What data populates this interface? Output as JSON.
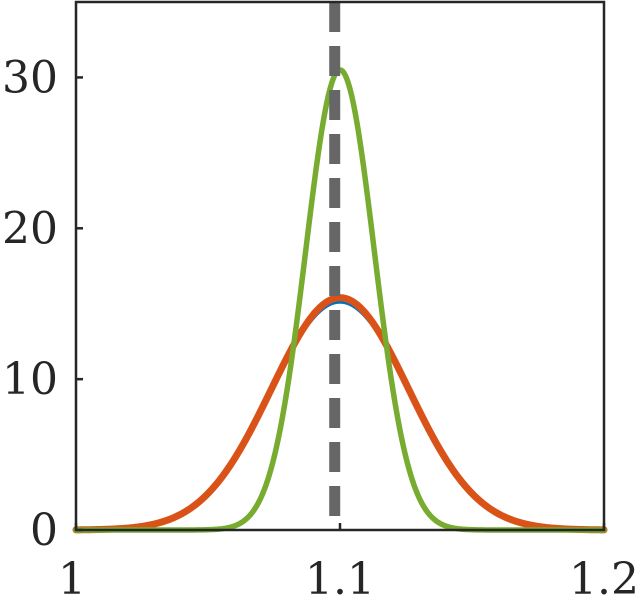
{
  "chart_data": {
    "type": "line",
    "title": "",
    "xlabel": "",
    "ylabel": "",
    "xlim": [
      1.0,
      1.2
    ],
    "ylim": [
      0,
      35
    ],
    "grid": false,
    "box": true,
    "xticks": [
      1.0,
      1.1,
      1.2
    ],
    "xtick_labels": [
      "1",
      "1.1",
      "1.2"
    ],
    "yticks": [
      0,
      10,
      20,
      30
    ],
    "ytick_labels": [
      "0",
      "10",
      "20",
      "30"
    ],
    "series": [
      {
        "color": "#0072BD",
        "kind": "gaussian",
        "mean": 1.1,
        "sd": 0.0264,
        "peak": 15.1
      },
      {
        "color": "#D95319",
        "kind": "gaussian",
        "mean": 1.1,
        "sd": 0.026,
        "peak": 15.4
      },
      {
        "color": "#77AC30",
        "kind": "gaussian",
        "mean": 1.1,
        "sd": 0.013,
        "peak": 30.5
      }
    ],
    "reference_line": {
      "x": 1.098,
      "color": "#666666",
      "style": "dashed"
    }
  }
}
